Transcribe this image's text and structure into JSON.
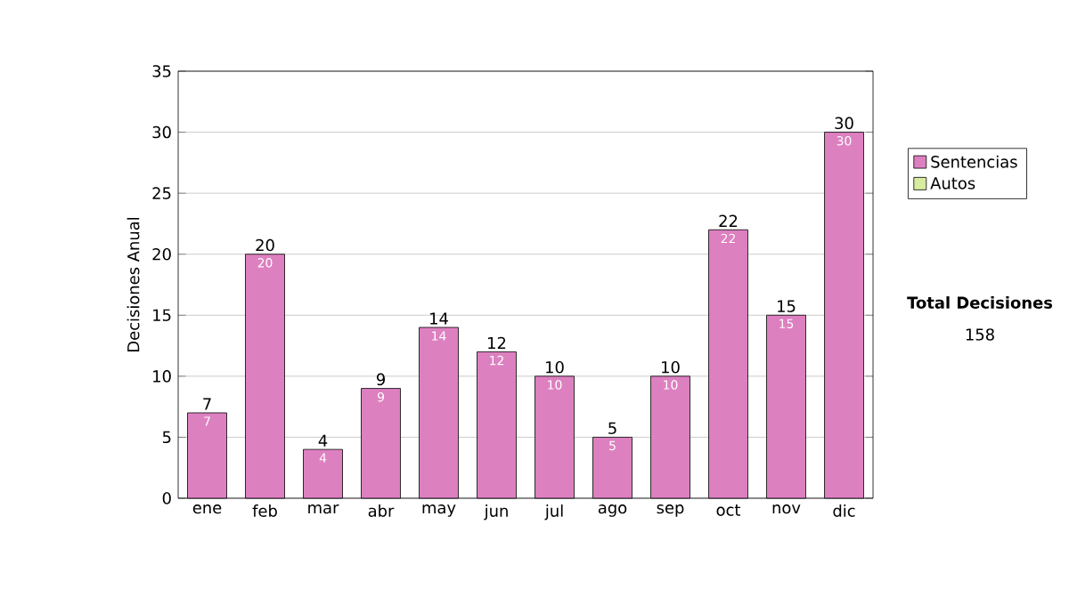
{
  "chart_data": {
    "type": "bar",
    "stacked": true,
    "ylabel": "Decisiones Anual",
    "categories": [
      "ene",
      "feb",
      "mar",
      "abr",
      "may",
      "jun",
      "jul",
      "ago",
      "sep",
      "oct",
      "nov",
      "dic"
    ],
    "series": [
      {
        "name": "Sentencias",
        "color": "#dd80c0",
        "values": [
          7,
          20,
          4,
          9,
          14,
          12,
          10,
          5,
          10,
          22,
          15,
          30
        ],
        "value_labels": [
          "7",
          "20",
          "4",
          "9",
          "14",
          "12",
          "10",
          "5",
          "10",
          "22",
          "15",
          "30"
        ]
      },
      {
        "name": "Autos",
        "color": "#d8eca0",
        "values": [
          0,
          0,
          0,
          0,
          0,
          0,
          0,
          0,
          0,
          0,
          0,
          0
        ]
      }
    ],
    "totals": [
      "7",
      "20",
      "4",
      "9",
      "14",
      "12",
      "10",
      "5",
      "10",
      "22",
      "15",
      "30"
    ],
    "ylim": [
      0,
      35
    ],
    "yticks": [
      0,
      5,
      10,
      15,
      20,
      25,
      30,
      35
    ],
    "grid": "y",
    "legend": "right",
    "annotations": [
      "**Total Decisiones**",
      "158"
    ]
  }
}
